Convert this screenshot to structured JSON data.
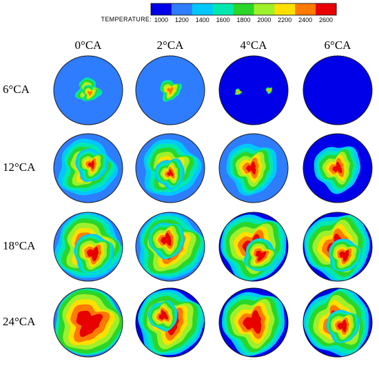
{
  "legend": {
    "title": "TEMPERATURE:",
    "ticks": [
      "1000",
      "1200",
      "1400",
      "1600",
      "1800",
      "2000",
      "2200",
      "2400",
      "2600"
    ],
    "colors": [
      "#0000e8",
      "#2f7dff",
      "#00c8ff",
      "#00e8b0",
      "#2ad62a",
      "#9ef02a",
      "#ffe000",
      "#ff7a00",
      "#e80000"
    ]
  },
  "columns": [
    "0°CA",
    "2°CA",
    "4°CA",
    "6°CA"
  ],
  "rows": [
    "6°CA",
    "12°CA",
    "18°CA",
    "24°CA"
  ]
}
